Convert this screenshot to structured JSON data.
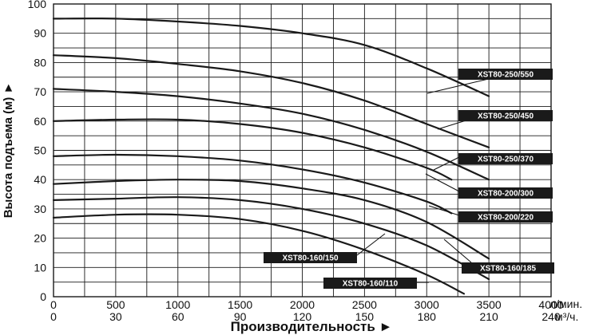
{
  "chart_data": {
    "type": "line",
    "title": "",
    "xlabel": "Производительность ►",
    "ylabel": "Высота подъема (м) ►",
    "x_unit_top": "л/мин.",
    "x_unit_bottom": "м³/ч.",
    "x_ticks_top": [
      "0",
      "500",
      "1000",
      "1500",
      "2000",
      "2500",
      "3000",
      "3500",
      "4000"
    ],
    "x_ticks_bottom": [
      "0",
      "30",
      "60",
      "90",
      "120",
      "150",
      "180",
      "210",
      "240"
    ],
    "y_ticks": [
      "0",
      "10",
      "20",
      "30",
      "40",
      "50",
      "60",
      "70",
      "80",
      "90",
      "100"
    ],
    "xlim": [
      0,
      4000
    ],
    "ylim": [
      0,
      100
    ],
    "grid": true,
    "colors": {
      "line": "#1a1a1a",
      "grid": "#1a1a1a",
      "label_bg": "#1a1a1a",
      "label_text": "#ffffff"
    },
    "series": [
      {
        "name": "XST80-250/550",
        "x": [
          0,
          500,
          1000,
          1500,
          2000,
          2500,
          3000,
          3500
        ],
        "y": [
          95,
          95,
          94,
          92.5,
          90,
          86,
          78,
          68.5
        ]
      },
      {
        "name": "XST80-250/450",
        "x": [
          0,
          500,
          1000,
          1500,
          2000,
          2500,
          3000,
          3500
        ],
        "y": [
          82.5,
          81.5,
          79.5,
          77,
          73,
          67,
          59,
          51
        ]
      },
      {
        "name": "XST80-250/370",
        "x": [
          0,
          500,
          1000,
          1500,
          2000,
          2500,
          3000,
          3500
        ],
        "y": [
          71,
          70,
          68.5,
          66,
          62.5,
          57,
          49.5,
          40
        ]
      },
      {
        "name": "XST80-200/300",
        "x": [
          0,
          500,
          1000,
          1500,
          2000,
          2500,
          3000,
          3200
        ],
        "y": [
          60,
          60.5,
          60.5,
          59,
          56,
          51,
          44,
          40
        ]
      },
      {
        "name": "XST80-200/220",
        "x": [
          0,
          500,
          1000,
          1500,
          2000,
          2500,
          3000,
          3200
        ],
        "y": [
          48,
          48.5,
          48,
          46.5,
          43.5,
          39,
          32.5,
          28.5
        ]
      },
      {
        "name": "XST80-160/185",
        "x": [
          0,
          500,
          1000,
          1500,
          2000,
          2500,
          3000,
          3500
        ],
        "y": [
          38.5,
          39.5,
          40,
          39.5,
          37,
          33,
          25.5,
          13
        ]
      },
      {
        "name": "XST80-160/150",
        "x": [
          0,
          500,
          1000,
          1500,
          2000,
          2500,
          3000,
          3500
        ],
        "y": [
          33,
          33.5,
          34,
          33,
          30,
          25,
          17.5,
          6
        ]
      },
      {
        "name": "XST80-160/110",
        "x": [
          0,
          500,
          1000,
          1500,
          2000,
          2500,
          3000,
          3300
        ],
        "y": [
          27,
          28,
          28,
          26.5,
          22.5,
          16,
          7.5,
          1
        ]
      }
    ]
  }
}
